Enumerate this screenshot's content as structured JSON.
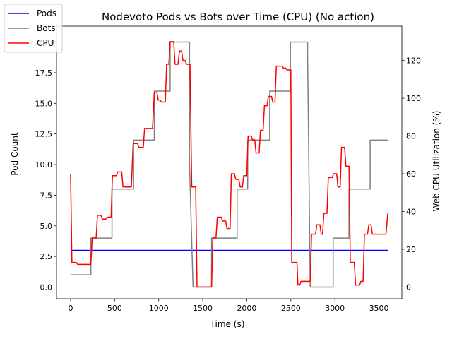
{
  "chart_data": {
    "type": "line",
    "title": "Nodevoto Pods vs Bots over Time (CPU)  (No action)",
    "xlabel": "Time (s)",
    "ylabel_left": "Pod Count",
    "ylabel_right": "Web CPU Utilization (%)",
    "xlim": [
      -160,
      3760
    ],
    "ylim_left": [
      -0.95,
      21.3
    ],
    "ylim_right": [
      -6.2,
      138.2
    ],
    "x_ticks": [
      0,
      500,
      1000,
      1500,
      2000,
      2500,
      3000,
      3500
    ],
    "y_left_ticks": [
      0.0,
      2.5,
      5.0,
      7.5,
      10.0,
      12.5,
      15.0,
      17.5,
      20.0
    ],
    "y_left_tick_labels": [
      "0.0",
      "2.5",
      "5.0",
      "7.5",
      "10.0",
      "12.5",
      "15.0",
      "17.5",
      "20.0"
    ],
    "y_right_ticks": [
      0,
      20,
      40,
      60,
      80,
      100,
      120
    ],
    "grid": false,
    "legend_position": "top-left",
    "colors": {
      "Pods": "#0000ff",
      "Bots": "#808080",
      "CPU": "#ff0000"
    },
    "series": [
      {
        "name": "Pods",
        "axis": "left",
        "x": [
          0,
          3600
        ],
        "y": [
          3,
          3
        ]
      },
      {
        "name": "Bots",
        "axis": "left",
        "x": [
          0,
          230,
          230,
          470,
          470,
          715,
          715,
          950,
          950,
          1130,
          1130,
          1350,
          1350,
          1390,
          1390,
          1600,
          1600,
          1890,
          1890,
          2010,
          2010,
          2260,
          2260,
          2495,
          2495,
          2690,
          2690,
          2720,
          2720,
          2980,
          2980,
          3160,
          3160,
          3400,
          3400,
          3600
        ],
        "y": [
          1,
          1,
          4,
          4,
          8,
          8,
          12,
          12,
          16,
          16,
          20,
          20,
          10,
          0,
          0,
          0,
          4,
          4,
          8,
          8,
          12,
          12,
          16,
          16,
          20,
          20,
          19,
          0,
          0,
          0,
          4,
          4,
          8,
          8,
          12,
          12
        ]
      },
      {
        "name": "CPU",
        "axis": "right",
        "x": [
          0,
          15,
          65,
          80,
          230,
          245,
          290,
          305,
          345,
          360,
          400,
          415,
          460,
          475,
          520,
          535,
          580,
          595,
          690,
          710,
          760,
          775,
          825,
          840,
          930,
          950,
          980,
          995,
          1015,
          1030,
          1075,
          1090,
          1115,
          1130,
          1170,
          1185,
          1220,
          1235,
          1260,
          1275,
          1300,
          1315,
          1355,
          1375,
          1420,
          1435,
          1490,
          1505,
          1600,
          1615,
          1650,
          1665,
          1710,
          1725,
          1760,
          1775,
          1810,
          1825,
          1860,
          1875,
          1910,
          1925,
          1950,
          1965,
          2000,
          2015,
          2050,
          2065,
          2090,
          2105,
          2140,
          2155,
          2185,
          2200,
          2230,
          2245,
          2280,
          2295,
          2320,
          2335,
          2360,
          2375,
          2400,
          2415,
          2440,
          2455,
          2500,
          2510,
          2570,
          2580,
          2600,
          2615,
          2720,
          2735,
          2780,
          2795,
          2830,
          2845,
          2860,
          2875,
          2910,
          2925,
          2970,
          2985,
          3020,
          3035,
          3060,
          3075,
          3110,
          3125,
          3160,
          3175,
          3220,
          3235,
          3280,
          3295,
          3320,
          3335,
          3370,
          3385,
          3410,
          3425,
          3580,
          3600
        ],
        "y": [
          60,
          13,
          13,
          12,
          12,
          26,
          26,
          38,
          38,
          36,
          36,
          37,
          37,
          59,
          59,
          61,
          61,
          53,
          53,
          76,
          76,
          74,
          74,
          84,
          84,
          103,
          103,
          99,
          99,
          98,
          98,
          118,
          118,
          130,
          130,
          118,
          118,
          125,
          125,
          120,
          120,
          118,
          118,
          53,
          53,
          0,
          0,
          0,
          0,
          26,
          26,
          37,
          37,
          35,
          35,
          31,
          31,
          60,
          60,
          57,
          57,
          53,
          53,
          59,
          59,
          80,
          80,
          78,
          78,
          71,
          71,
          83,
          83,
          96,
          96,
          101,
          101,
          98,
          98,
          117,
          117,
          117,
          117,
          116,
          116,
          115,
          115,
          13,
          13,
          1,
          1,
          3,
          3,
          28,
          28,
          33,
          33,
          28,
          28,
          39,
          39,
          58,
          58,
          60,
          60,
          53,
          53,
          74,
          74,
          64,
          64,
          13,
          13,
          1,
          1,
          3,
          3,
          28,
          28,
          33,
          33,
          28,
          28,
          39
        ],
        "note_hidden": false
      }
    ]
  }
}
